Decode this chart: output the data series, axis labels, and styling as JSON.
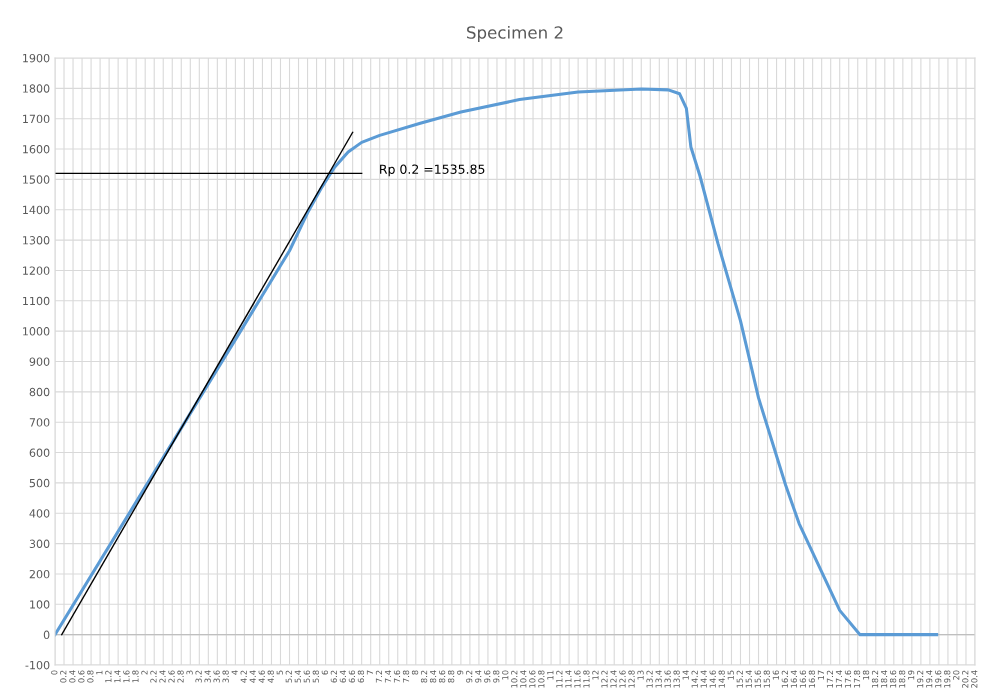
{
  "chart_data": {
    "type": "line",
    "title": "Specimen 2",
    "xlim": [
      0,
      20.4
    ],
    "ylim": [
      -100,
      1900
    ],
    "xticks": [
      0,
      0.2,
      0.4,
      0.6,
      0.8,
      1,
      1.2,
      1.4,
      1.6,
      1.8,
      2,
      2.2,
      2.4,
      2.6,
      2.8,
      3,
      3.2,
      3.4,
      3.6,
      3.8,
      4,
      4.2,
      4.4,
      4.6,
      4.8,
      5,
      5.2,
      5.4,
      5.6,
      5.8,
      6,
      6.2,
      6.4,
      6.6,
      6.8,
      7,
      7.2,
      7.4,
      7.6,
      7.8,
      8,
      8.2,
      8.4,
      8.6,
      8.8,
      9,
      9.2,
      9.4,
      9.6,
      9.8,
      10,
      10.2,
      10.4,
      10.6,
      10.8,
      11,
      11.2,
      11.4,
      11.6,
      11.8,
      12,
      12.2,
      12.4,
      12.6,
      12.8,
      13,
      13.2,
      13.4,
      13.6,
      13.8,
      14,
      14.2,
      14.4,
      14.6,
      14.8,
      15,
      15.2,
      15.4,
      15.6,
      15.8,
      16,
      16.2,
      16.4,
      16.6,
      16.8,
      17,
      17.2,
      17.4,
      17.6,
      17.8,
      18,
      18.2,
      18.4,
      18.6,
      18.8,
      19,
      19.2,
      19.4,
      19.6,
      19.8,
      20,
      20.2,
      20.4
    ],
    "yticks": [
      -100,
      0,
      100,
      200,
      300,
      400,
      500,
      600,
      700,
      800,
      900,
      1000,
      1100,
      1200,
      1300,
      1400,
      1500,
      1600,
      1700,
      1800,
      1900
    ],
    "grid": true,
    "legend": false,
    "marker": "none",
    "line_style": "solid",
    "series": [
      {
        "color": "#5b9bd5",
        "x": [
          0,
          2,
          4,
          5.2,
          5.6,
          5.9,
          6.2,
          6.5,
          6.8,
          7.2,
          8.1,
          9,
          10.3,
          11.6,
          13,
          13.6,
          13.85,
          14,
          14.1,
          14.3,
          14.7,
          15.2,
          15.6,
          16.2,
          16.5,
          17,
          17.4,
          17.85,
          19.55
        ],
        "values": [
          0,
          486,
          972,
          1265,
          1390,
          1470,
          1540,
          1590,
          1622,
          1645,
          1685,
          1722,
          1763,
          1788,
          1798,
          1795,
          1782,
          1734,
          1607,
          1512,
          1289,
          1034,
          780,
          493,
          366,
          207,
          80,
          0,
          0
        ]
      },
      {
        "color": "#000000",
        "x": [
          0.15,
          6.6
        ],
        "values": [
          0,
          1655
        ]
      },
      {
        "color": "#000000",
        "x": [
          0,
          6.8
        ],
        "values": [
          1520,
          1520
        ]
      }
    ],
    "annotations": [
      "Rp 0.2 =1535.85"
    ]
  }
}
